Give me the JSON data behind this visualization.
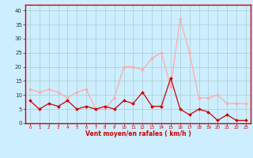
{
  "hours": [
    0,
    1,
    2,
    3,
    4,
    5,
    6,
    7,
    8,
    9,
    10,
    11,
    12,
    13,
    14,
    15,
    16,
    17,
    18,
    19,
    20,
    21,
    22,
    23
  ],
  "vent_moyen": [
    8,
    5,
    7,
    6,
    8,
    5,
    6,
    5,
    6,
    5,
    8,
    7,
    11,
    6,
    6,
    16,
    5,
    3,
    5,
    4,
    1,
    3,
    1,
    1
  ],
  "en_rafales": [
    12,
    11,
    12,
    11,
    9,
    11,
    12,
    5,
    5,
    9,
    20,
    20,
    19,
    23,
    25,
    13,
    37,
    25,
    9,
    9,
    10,
    7,
    7,
    7
  ],
  "color_moyen": "#cc0000",
  "color_rafales": "#ffaaaa",
  "bg_color": "#cceeff",
  "grid_color": "#aacccc",
  "xlabel": "Vent moyen/en rafales ( km/h )",
  "xlabel_color": "#cc0000",
  "yticks": [
    0,
    5,
    10,
    15,
    20,
    25,
    30,
    35,
    40
  ],
  "ylim": [
    0,
    42
  ],
  "xlim": [
    -0.5,
    23.5
  ],
  "tick_color": "#333333",
  "spine_color": "#cc0000"
}
